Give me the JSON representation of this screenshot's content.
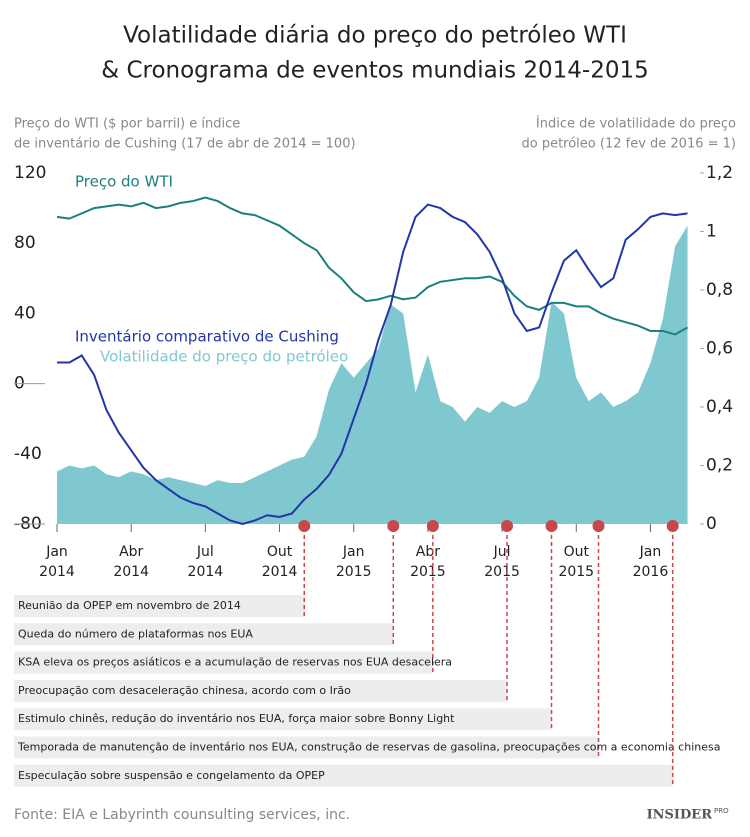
{
  "chart_data": {
    "type": "line",
    "title": [
      "Volatilidade diária do preço do petróleo WTI",
      "& Cronograma de eventos mundiais 2014-2015"
    ],
    "y_label": [
      "Preço do WTI ($ por barril) e índice",
      "de inventário de Cushing (17 de abr de 2014 = 100)"
    ],
    "y2_label": [
      "Índice de volatilidade do preço",
      "do petróleo (12 fev de 2016 = 1)"
    ],
    "source": "Fonte: EIA e Labyrinth counsulting services, inc.",
    "brand": "INSIDER",
    "brand_sub": "PRO",
    "x": [
      0,
      0.5,
      1,
      1.5,
      2,
      2.5,
      3,
      3.5,
      4,
      4.5,
      5,
      5.5,
      6,
      6.5,
      7,
      7.5,
      8,
      8.5,
      9,
      9.5,
      10,
      10.5,
      11,
      11.5,
      12,
      12.5,
      13,
      13.5,
      14,
      14.5,
      15,
      15.5,
      16,
      16.5,
      17,
      17.5,
      18,
      18.5,
      19,
      19.5,
      20,
      20.5,
      21,
      21.5,
      22,
      22.5,
      23,
      23.5,
      24,
      24.5,
      25,
      25.5
    ],
    "xlim": [
      0,
      25.6
    ],
    "xticks": [
      {
        "value": 0,
        "label": "Jan 2014"
      },
      {
        "value": 3,
        "label": "Abr 2014"
      },
      {
        "value": 6,
        "label": "Jul 2014"
      },
      {
        "value": 9,
        "label": "Out 2014"
      },
      {
        "value": 12,
        "label": "Jan 2015"
      },
      {
        "value": 15,
        "label": "Abr 2015"
      },
      {
        "value": 18,
        "label": "Jul 2015"
      },
      {
        "value": 21,
        "label": "Out 2015"
      },
      {
        "value": 24,
        "label": "Jan 2016"
      }
    ],
    "ylim": [
      -80,
      120
    ],
    "yticks": [
      -80,
      -40,
      0,
      40,
      80,
      120
    ],
    "y2lim": [
      0,
      1.2
    ],
    "y2ticks": [
      0,
      {
        "value": 0.2,
        "label": "0,2"
      },
      {
        "value": 0.4,
        "label": "0,4"
      },
      {
        "value": 0.6,
        "label": "0,6"
      },
      {
        "value": 0.8,
        "label": "0,8"
      },
      1,
      {
        "value": 1.2,
        "label": "1,2"
      }
    ],
    "series": [
      {
        "name": "Volatilidade do preço do petróleo",
        "color": "#80c8d0",
        "axis": "y2",
        "kind": "area",
        "values": [
          0.18,
          0.2,
          0.19,
          0.2,
          0.17,
          0.16,
          0.18,
          0.17,
          0.15,
          0.16,
          0.15,
          0.14,
          0.13,
          0.15,
          0.14,
          0.14,
          0.16,
          0.18,
          0.2,
          0.22,
          0.23,
          0.3,
          0.46,
          0.55,
          0.5,
          0.55,
          0.6,
          0.75,
          0.72,
          0.45,
          0.58,
          0.42,
          0.4,
          0.35,
          0.4,
          0.38,
          0.42,
          0.4,
          0.42,
          0.5,
          0.76,
          0.72,
          0.5,
          0.42,
          0.45,
          0.4,
          0.42,
          0.45,
          0.55,
          0.7,
          0.95,
          1.02
        ]
      },
      {
        "name": "Preço do WTI",
        "color": "#1b7f7f",
        "kind": "line",
        "values": [
          95,
          94,
          97,
          100,
          101,
          102,
          101,
          103,
          100,
          101,
          103,
          104,
          106,
          104,
          100,
          97,
          96,
          93,
          90,
          85,
          80,
          76,
          66,
          60,
          52,
          47,
          48,
          50,
          48,
          49,
          55,
          58,
          59,
          60,
          60,
          61,
          58,
          50,
          44,
          42,
          46,
          46,
          44,
          44,
          40,
          37,
          35,
          33,
          30,
          30,
          28,
          32
        ]
      },
      {
        "name": "Inventário comparativo de Cushing",
        "color": "#2236a8",
        "kind": "line",
        "values": [
          12,
          12,
          16,
          5,
          -15,
          -28,
          -38,
          -48,
          -55,
          -60,
          -65,
          -68,
          -70,
          -74,
          -78,
          -80,
          -78,
          -75,
          -76,
          -74,
          -66,
          -60,
          -52,
          -40,
          -20,
          0,
          25,
          45,
          75,
          95,
          102,
          100,
          95,
          92,
          85,
          75,
          60,
          40,
          30,
          32,
          52,
          70,
          76,
          65,
          55,
          60,
          82,
          88,
          95,
          97,
          96,
          97
        ]
      }
    ],
    "events": [
      {
        "x": 10.0,
        "label": "Reunião da OPEP em novembro de 2014"
      },
      {
        "x": 13.6,
        "label": "Queda do número de plataformas nos EUA"
      },
      {
        "x": 15.2,
        "label": "KSA eleva os preços asiáticos e a acumulação de reservas nos EUA desacelera"
      },
      {
        "x": 18.2,
        "label": "Preocupação com desaceleração chinesa, acordo com o Irão"
      },
      {
        "x": 20.0,
        "label": "Estimulo chinês, redução do inventário nos EUA, força maior sobre Bonny Light"
      },
      {
        "x": 21.9,
        "label": "Temporada de manutenção de inventário nos EUA, construção de reservas de gasolina, preocupações com a economia chinesa"
      },
      {
        "x": 24.9,
        "label": "Especulação sobre suspensão e congelamento da OPEP"
      }
    ]
  }
}
